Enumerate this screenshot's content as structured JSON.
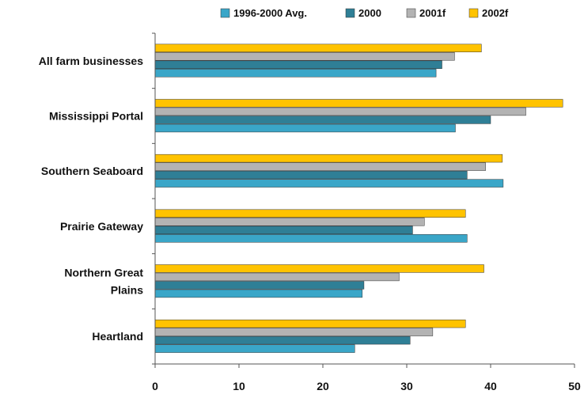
{
  "chart_data": {
    "type": "bar",
    "orientation": "horizontal",
    "categories": [
      "All farm businesses",
      "Mississippi Portal",
      "Southern Seaboard",
      "Prairie Gateway",
      "Northern Great Plains",
      "Heartland"
    ],
    "category_label_lines": [
      [
        "All farm businesses"
      ],
      [
        "Mississippi Portal"
      ],
      [
        "Southern Seaboard"
      ],
      [
        "Prairie Gateway"
      ],
      [
        "Northern Great",
        "Plains"
      ],
      [
        "Heartland"
      ]
    ],
    "series": [
      {
        "name": "1996-2000 Avg.",
        "color": "#3aa6c8",
        "values": [
          33.5,
          35.8,
          41.5,
          37.2,
          24.7,
          23.8
        ]
      },
      {
        "name": "2000",
        "color": "#2f7f96",
        "values": [
          34.2,
          40.0,
          37.2,
          30.7,
          24.9,
          30.4
        ]
      },
      {
        "name": "2001f",
        "color": "#b3b3b3",
        "values": [
          35.7,
          44.2,
          39.4,
          32.1,
          29.1,
          33.1
        ]
      },
      {
        "name": "2002f",
        "color": "#ffc300",
        "values": [
          38.9,
          48.6,
          41.4,
          37.0,
          39.2,
          37.0
        ]
      }
    ],
    "xlim": [
      0,
      50
    ],
    "xticks": [
      "0",
      "10",
      "20",
      "30",
      "40",
      "50"
    ],
    "grid": false,
    "legend_position": "top",
    "title": "",
    "xlabel": "",
    "ylabel": ""
  }
}
